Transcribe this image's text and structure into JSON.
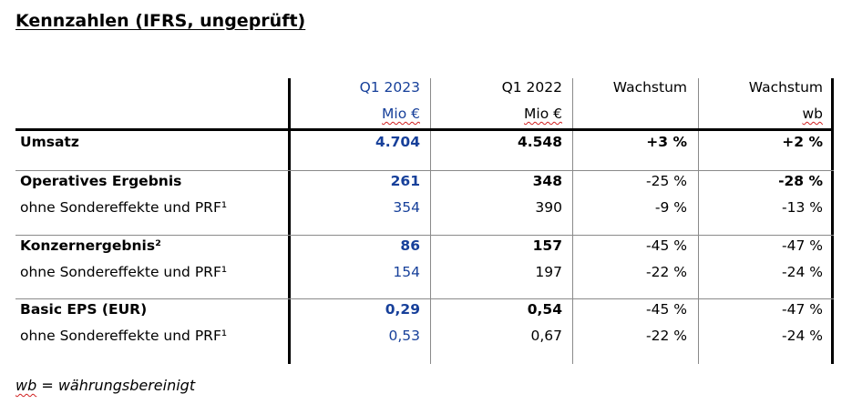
{
  "title": "Kennzahlen (IFRS, ungeprüft)",
  "header": {
    "col1": {
      "line1": "Q1 2023",
      "line2": "Mio €"
    },
    "col2": {
      "line1": "Q1 2022",
      "line2": "Mio €"
    },
    "col3": {
      "line1": "Wachstum",
      "line2": ""
    },
    "col4": {
      "line1": "Wachstum",
      "line2": "wb"
    }
  },
  "rows": [
    {
      "label": "Umsatz",
      "q1_2023": "4.704",
      "q1_2022": "4.548",
      "wachstum": "+3 %",
      "wachstum_wb": "+2 %"
    },
    {
      "label": "Operatives Ergebnis",
      "q1_2023": "261",
      "q1_2022": "348",
      "wachstum": "-25 %",
      "wachstum_wb": "-28 %"
    },
    {
      "label": "ohne Sondereffekte und PRF¹",
      "q1_2023": "354",
      "q1_2022": "390",
      "wachstum": "-9 %",
      "wachstum_wb": "-13 %"
    },
    {
      "label": "Konzernergebnis²",
      "q1_2023": "86",
      "q1_2022": "157",
      "wachstum": "-45 %",
      "wachstum_wb": "-47 %"
    },
    {
      "label": "ohne Sondereffekte und PRF¹",
      "q1_2023": "154",
      "q1_2022": "197",
      "wachstum": "-22 %",
      "wachstum_wb": "-24 %"
    },
    {
      "label": "Basic EPS (EUR)",
      "q1_2023": "0,29",
      "q1_2022": "0,54",
      "wachstum": "-45 %",
      "wachstum_wb": "-47 %"
    },
    {
      "label": "ohne Sondereffekte und PRF¹",
      "q1_2023": "0,53",
      "q1_2022": "0,67",
      "wachstum": "-22 %",
      "wachstum_wb": "-24 %"
    }
  ],
  "footnote": {
    "abbr": "wb",
    "text": " = währungsbereinigt"
  },
  "colors": {
    "accent_blue": "#17409a"
  }
}
